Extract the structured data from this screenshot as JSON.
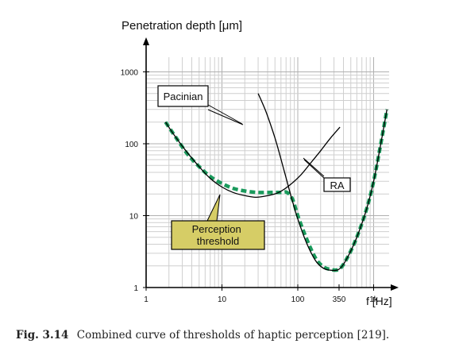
{
  "chart_data": {
    "type": "line",
    "ylabel": "Penetration depth [μm]",
    "xlabel": "f [Hz]",
    "xscale": "log",
    "yscale": "log",
    "xlim": [
      1,
      1600
    ],
    "ylim": [
      1,
      1600
    ],
    "x_ticks": [
      {
        "value": 1,
        "label": "1"
      },
      {
        "value": 10,
        "label": "10"
      },
      {
        "value": 100,
        "label": "100"
      },
      {
        "value": 350,
        "label": "350"
      },
      {
        "value": 1000,
        "label": "1k"
      }
    ],
    "y_ticks": [
      {
        "value": 1,
        "label": "1"
      },
      {
        "value": 10,
        "label": "10"
      },
      {
        "value": 100,
        "label": "100"
      },
      {
        "value": 1000,
        "label": "1000"
      }
    ],
    "grid": true,
    "series": [
      {
        "name": "Pacinian",
        "style": "solid",
        "color": "#000000",
        "x": [
          30,
          38,
          50,
          65,
          80,
          100,
          130,
          170,
          210,
          260,
          350,
          450,
          600,
          800,
          1000,
          1300,
          1500
        ],
        "y": [
          500,
          280,
          120,
          45,
          20,
          9,
          4.2,
          2.4,
          1.9,
          1.75,
          1.8,
          2.6,
          5,
          12,
          30,
          130,
          300
        ]
      },
      {
        "name": "RA",
        "style": "solid",
        "color": "#000000",
        "x": [
          1.8,
          2.5,
          3.5,
          5,
          7,
          10,
          14,
          20,
          28,
          40,
          56,
          80,
          110,
          150,
          200,
          270,
          360
        ],
        "y": [
          200,
          120,
          75,
          48,
          33,
          25,
          21,
          19,
          18,
          19,
          21,
          27,
          37,
          55,
          80,
          120,
          170
        ]
      },
      {
        "name": "Perception threshold",
        "style": "dashed",
        "color": "#1a9a5c",
        "x": [
          1.8,
          2.5,
          3.5,
          5,
          7,
          10,
          14,
          20,
          30,
          45,
          60,
          72,
          85,
          100,
          130,
          170,
          210,
          260,
          350,
          450,
          600,
          800,
          1000,
          1300,
          1500
        ],
        "y": [
          200,
          120,
          72,
          48,
          35,
          28,
          24,
          22,
          21,
          21,
          21,
          21,
          17,
          10,
          4.8,
          2.6,
          2.0,
          1.8,
          1.8,
          2.6,
          5,
          12,
          30,
          130,
          300
        ]
      }
    ],
    "annotations": [
      {
        "text": "Pacinian",
        "style": "white box"
      },
      {
        "text": "RA",
        "style": "white box"
      },
      {
        "text": "Perception threshold",
        "style": "yellow box"
      }
    ]
  },
  "caption": {
    "label": "Fig. 3.14",
    "text": "Combined curve of thresholds of haptic perception [219]."
  }
}
